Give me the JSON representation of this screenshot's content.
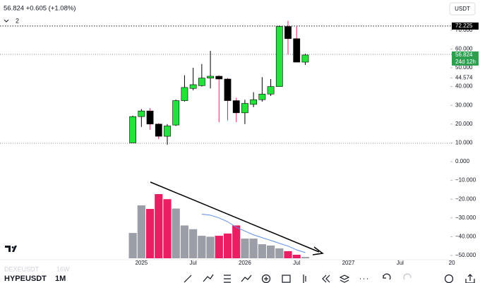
{
  "header": {
    "quote": "56.824 +0.605 (+1.08%)",
    "collapse": "2",
    "currency": "USDT"
  },
  "toolbar": {
    "symbol": "HYPEUSDT",
    "interval": "1M",
    "ghost_symbol": "DEXEUSDT",
    "ghost_interval": "16W"
  },
  "chart_data": {
    "type": "candlestick",
    "x": [
      0,
      1,
      2,
      3,
      4,
      5,
      6,
      7,
      8,
      9,
      10,
      11,
      12,
      13,
      14,
      15,
      16,
      17,
      18,
      19,
      20
    ],
    "open": [
      10,
      24,
      27,
      20,
      13.5,
      19.5,
      32.5,
      39,
      40.5,
      44.5,
      45.5,
      44,
      32.5,
      26,
      30.5,
      33,
      36,
      40,
      72,
      65.5,
      53
    ],
    "high": [
      24.5,
      28,
      28.5,
      20.5,
      20,
      33,
      46,
      50,
      52,
      59,
      46,
      44.5,
      34,
      33,
      37,
      45,
      44,
      72.5,
      75,
      72,
      57.5
    ],
    "low": [
      10,
      18.5,
      17,
      12,
      9,
      19,
      32,
      38,
      40,
      39,
      21,
      22,
      21,
      20,
      29,
      32,
      35,
      40,
      57,
      53,
      51.5
    ],
    "close": [
      24,
      27,
      20,
      13.5,
      19,
      32.5,
      39.5,
      41,
      44.5,
      45.5,
      44,
      32.5,
      26,
      31,
      33,
      36,
      40,
      72,
      65.5,
      53,
      56.8
    ],
    "up_color": "#22e33a",
    "down_color": "#000000",
    "up_wick": "#000000",
    "down_wick": "#e0245e",
    "xlim": [
      -15.4,
      37.4
    ],
    "xticks": [
      {
        "value": 1,
        "label": "2025"
      },
      {
        "value": 7,
        "label": "Jul"
      },
      {
        "value": 13,
        "label": "2026"
      },
      {
        "value": 19,
        "label": "Jul"
      },
      {
        "value": 25,
        "label": "2027"
      },
      {
        "value": 31,
        "label": "Jul"
      },
      {
        "value": 37,
        "label": "20"
      }
    ],
    "ylim": [
      -51.5,
      86.1
    ],
    "yticks": [
      {
        "value": 70,
        "label": "70.000"
      },
      {
        "value": 60,
        "label": "60.000"
      },
      {
        "value": 50,
        "label": "50.000"
      },
      {
        "value": 40,
        "label": "40.000"
      },
      {
        "value": 30,
        "label": "30.000"
      },
      {
        "value": 20,
        "label": "20.000"
      },
      {
        "value": 10,
        "label": "10.000"
      },
      {
        "value": 0,
        "label": "0.000"
      },
      {
        "value": -10,
        "label": "−10.000"
      },
      {
        "value": -20,
        "label": "−20.000"
      },
      {
        "value": -30,
        "label": "−30.000"
      },
      {
        "value": -40,
        "label": "−40.000"
      },
      {
        "value": -50,
        "label": "−50.000"
      }
    ],
    "grid": false,
    "price_markers": [
      {
        "value": 72.225,
        "label": "72.225",
        "color": "#000000"
      },
      {
        "value": 56.824,
        "label": "56.824",
        "sublabel": "24d 12h",
        "color": "#2e9e4f"
      },
      {
        "value": 44.574,
        "label": "44.574"
      }
    ],
    "indicator": {
      "type": "bar",
      "values": [
        -38,
        -23.3,
        -25.2,
        -17.3,
        -20,
        -25,
        -34,
        -36,
        -39.5,
        -40,
        -39.5,
        -38.3,
        -34,
        -41,
        -41,
        -44,
        -44.7,
        -46.2,
        -47.7,
        -49.6,
        -50.8
      ],
      "colors": [
        "#9b9ea6",
        "#9b9ea6",
        "#e91e63",
        "#e91e63",
        "#e91e63",
        "#9b9ea6",
        "#9b9ea6",
        "#9b9ea6",
        "#9b9ea6",
        "#9b9ea6",
        "#e91e63",
        "#e91e63",
        "#e91e63",
        "#9b9ea6",
        "#9b9ea6",
        "#9b9ea6",
        "#9b9ea6",
        "#9b9ea6",
        "#e91e63",
        "#e91e63",
        "#9b9ea6"
      ],
      "signal": {
        "color": "#5b8fe6",
        "values": [
          null,
          null,
          null,
          null,
          null,
          null,
          null,
          null,
          -28,
          -28.5,
          -30,
          -32,
          -35,
          -37,
          -39,
          -40.5,
          -42,
          -43.5,
          -45,
          -47,
          -48.5
        ]
      }
    }
  }
}
